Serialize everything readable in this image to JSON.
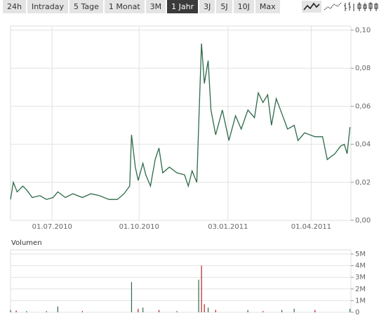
{
  "tabs": [
    "24h",
    "Intraday",
    "5 Tage",
    "1 Monat",
    "3M",
    "1 Jahr",
    "3J",
    "5J",
    "10J",
    "Max"
  ],
  "active_tab": 5,
  "chart_data": [
    {
      "type": "line",
      "color": "#2e6b4a",
      "x": [
        "2010-05-18",
        "2010-05-21",
        "2010-05-25",
        "2010-05-31",
        "2010-06-04",
        "2010-06-10",
        "2010-06-18",
        "2010-06-25",
        "2010-07-02",
        "2010-07-07",
        "2010-07-15",
        "2010-07-23",
        "2010-08-02",
        "2010-08-11",
        "2010-08-20",
        "2010-08-30",
        "2010-09-08",
        "2010-09-15",
        "2010-09-21",
        "2010-09-23",
        "2010-09-27",
        "2010-09-30",
        "2010-10-05",
        "2010-10-08",
        "2010-10-13",
        "2010-10-18",
        "2010-10-22",
        "2010-10-26",
        "2010-11-02",
        "2010-11-10",
        "2010-11-18",
        "2010-11-22",
        "2010-11-26",
        "2010-12-01",
        "2010-12-03",
        "2010-12-06",
        "2010-12-09",
        "2010-12-13",
        "2010-12-16",
        "2010-12-21",
        "2010-12-28",
        "2011-01-04",
        "2011-01-11",
        "2011-01-17",
        "2011-01-24",
        "2011-01-31",
        "2011-02-04",
        "2011-02-09",
        "2011-02-14",
        "2011-02-18",
        "2011-02-23",
        "2011-03-01",
        "2011-03-07",
        "2011-03-14",
        "2011-03-18",
        "2011-03-25",
        "2011-04-05",
        "2011-04-13",
        "2011-04-18",
        "2011-04-26",
        "2011-05-02",
        "2011-05-06",
        "2011-05-09",
        "2011-05-12"
      ],
      "values": [
        0.011,
        0.02,
        0.015,
        0.018,
        0.016,
        0.012,
        0.013,
        0.011,
        0.012,
        0.015,
        0.012,
        0.014,
        0.012,
        0.014,
        0.013,
        0.011,
        0.011,
        0.014,
        0.018,
        0.045,
        0.028,
        0.021,
        0.03,
        0.024,
        0.018,
        0.032,
        0.038,
        0.025,
        0.028,
        0.025,
        0.024,
        0.018,
        0.026,
        0.02,
        0.05,
        0.093,
        0.072,
        0.084,
        0.058,
        0.045,
        0.058,
        0.042,
        0.055,
        0.048,
        0.058,
        0.054,
        0.067,
        0.062,
        0.066,
        0.05,
        0.064,
        0.056,
        0.048,
        0.05,
        0.042,
        0.046,
        0.044,
        0.044,
        0.032,
        0.035,
        0.039,
        0.04,
        0.035,
        0.049
      ],
      "xlim": [
        "2010-05-18",
        "2011-05-13"
      ],
      "xticks": [
        {
          "value": "2010-07-01",
          "label": "01.07.2010"
        },
        {
          "value": "2010-10-01",
          "label": "01.10.2010"
        },
        {
          "value": "2011-01-03",
          "label": "03.01.2011"
        },
        {
          "value": "2011-04-01",
          "label": "01.04.2011"
        }
      ],
      "ylim": [
        0,
        0.1
      ],
      "yticks": [
        {
          "value": 0,
          "label": "0,00"
        },
        {
          "value": 0.02,
          "label": "0,02"
        },
        {
          "value": 0.04,
          "label": "0,04"
        },
        {
          "value": 0.06,
          "label": "0,06"
        },
        {
          "value": 0.08,
          "label": "0,08"
        },
        {
          "value": 0.1,
          "label": "0,10"
        }
      ],
      "grid": true
    },
    {
      "type": "bar",
      "title": "Volumen",
      "x": [
        "2010-05-18",
        "2010-05-24",
        "2010-06-04",
        "2010-06-25",
        "2010-07-07",
        "2010-08-02",
        "2010-09-23",
        "2010-09-30",
        "2010-10-05",
        "2010-10-22",
        "2010-11-10",
        "2010-12-03",
        "2010-12-06",
        "2010-12-09",
        "2010-12-13",
        "2010-12-21",
        "2011-01-24",
        "2011-02-09",
        "2011-03-01",
        "2011-03-14",
        "2011-04-05",
        "2011-05-12"
      ],
      "values": [
        200000,
        150000,
        100000,
        100000,
        500000,
        100000,
        2600000,
        300000,
        400000,
        200000,
        100000,
        2800000,
        4000000,
        700000,
        400000,
        200000,
        200000,
        100000,
        200000,
        300000,
        200000,
        300000
      ],
      "colors": [
        "#2e6b4a",
        "#b22222",
        "#2e6b4a",
        "#2e6b4a",
        "#2e6b4a",
        "#b22222",
        "#2e6b4a",
        "#b22222",
        "#2e6b4a",
        "#b22222",
        "#2e6b4a",
        "#2e6b4a",
        "#b22222",
        "#b22222",
        "#2e6b4a",
        "#b22222",
        "#2e6b4a",
        "#b22222",
        "#2e6b4a",
        "#2e6b4a",
        "#b22222",
        "#2e6b4a"
      ],
      "xlim": [
        "2010-05-18",
        "2011-05-13"
      ],
      "ylim": [
        0,
        5000000
      ],
      "yticks": [
        0,
        {
          "value": 1000000,
          "label": "1M"
        },
        {
          "value": 2000000,
          "label": "2M"
        },
        {
          "value": 3000000,
          "label": "3M"
        },
        {
          "value": 4000000,
          "label": "4M"
        },
        {
          "value": 5000000,
          "label": "5M"
        }
      ],
      "grid": true
    }
  ]
}
